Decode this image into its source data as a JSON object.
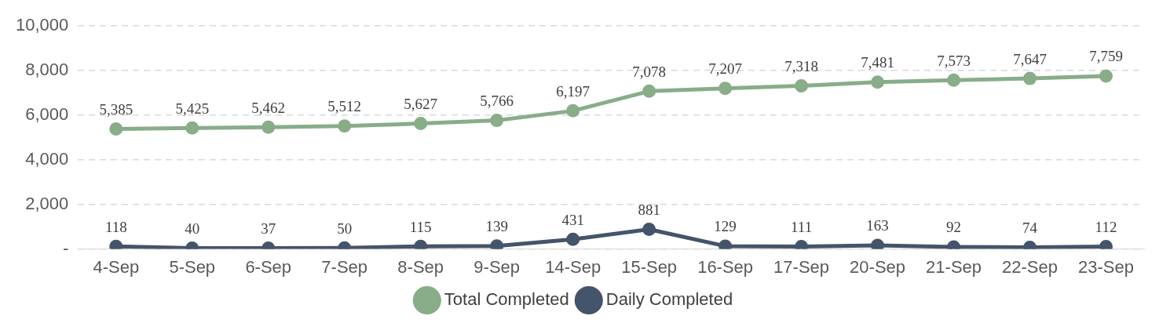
{
  "chart_data": {
    "type": "line",
    "categories": [
      "4-Sep",
      "5-Sep",
      "6-Sep",
      "7-Sep",
      "8-Sep",
      "9-Sep",
      "14-Sep",
      "15-Sep",
      "16-Sep",
      "17-Sep",
      "20-Sep",
      "21-Sep",
      "22-Sep",
      "23-Sep"
    ],
    "series": [
      {
        "name": "Total Completed",
        "color": "#88ad88",
        "values": [
          5385,
          5425,
          5462,
          5512,
          5627,
          5766,
          6197,
          7078,
          7207,
          7318,
          7481,
          7573,
          7647,
          7759
        ],
        "value_labels": [
          "5,385",
          "5,425",
          "5,462",
          "5,512",
          "5,627",
          "5,766",
          "6,197",
          "7,078",
          "7,207",
          "7,318",
          "7,481",
          "7,573",
          "7,647",
          "7,759"
        ]
      },
      {
        "name": "Daily Completed",
        "color": "#44546a",
        "values": [
          118,
          40,
          37,
          50,
          115,
          139,
          431,
          881,
          129,
          111,
          163,
          92,
          74,
          112
        ],
        "value_labels": [
          "118",
          "40",
          "37",
          "50",
          "115",
          "139",
          "431",
          "881",
          "129",
          "111",
          "163",
          "92",
          "74",
          "112"
        ]
      }
    ],
    "ylim": [
      0,
      10000
    ],
    "yticks": [
      {
        "value": 0,
        "label": "-"
      },
      {
        "value": 2000,
        "label": "2,000"
      },
      {
        "value": 4000,
        "label": "4,000"
      },
      {
        "value": 6000,
        "label": "6,000"
      },
      {
        "value": 8000,
        "label": "8,000"
      },
      {
        "value": 10000,
        "label": "10,000"
      }
    ],
    "grid": "y",
    "legend": "bottom",
    "marker": "circle",
    "line_style": "solid"
  }
}
